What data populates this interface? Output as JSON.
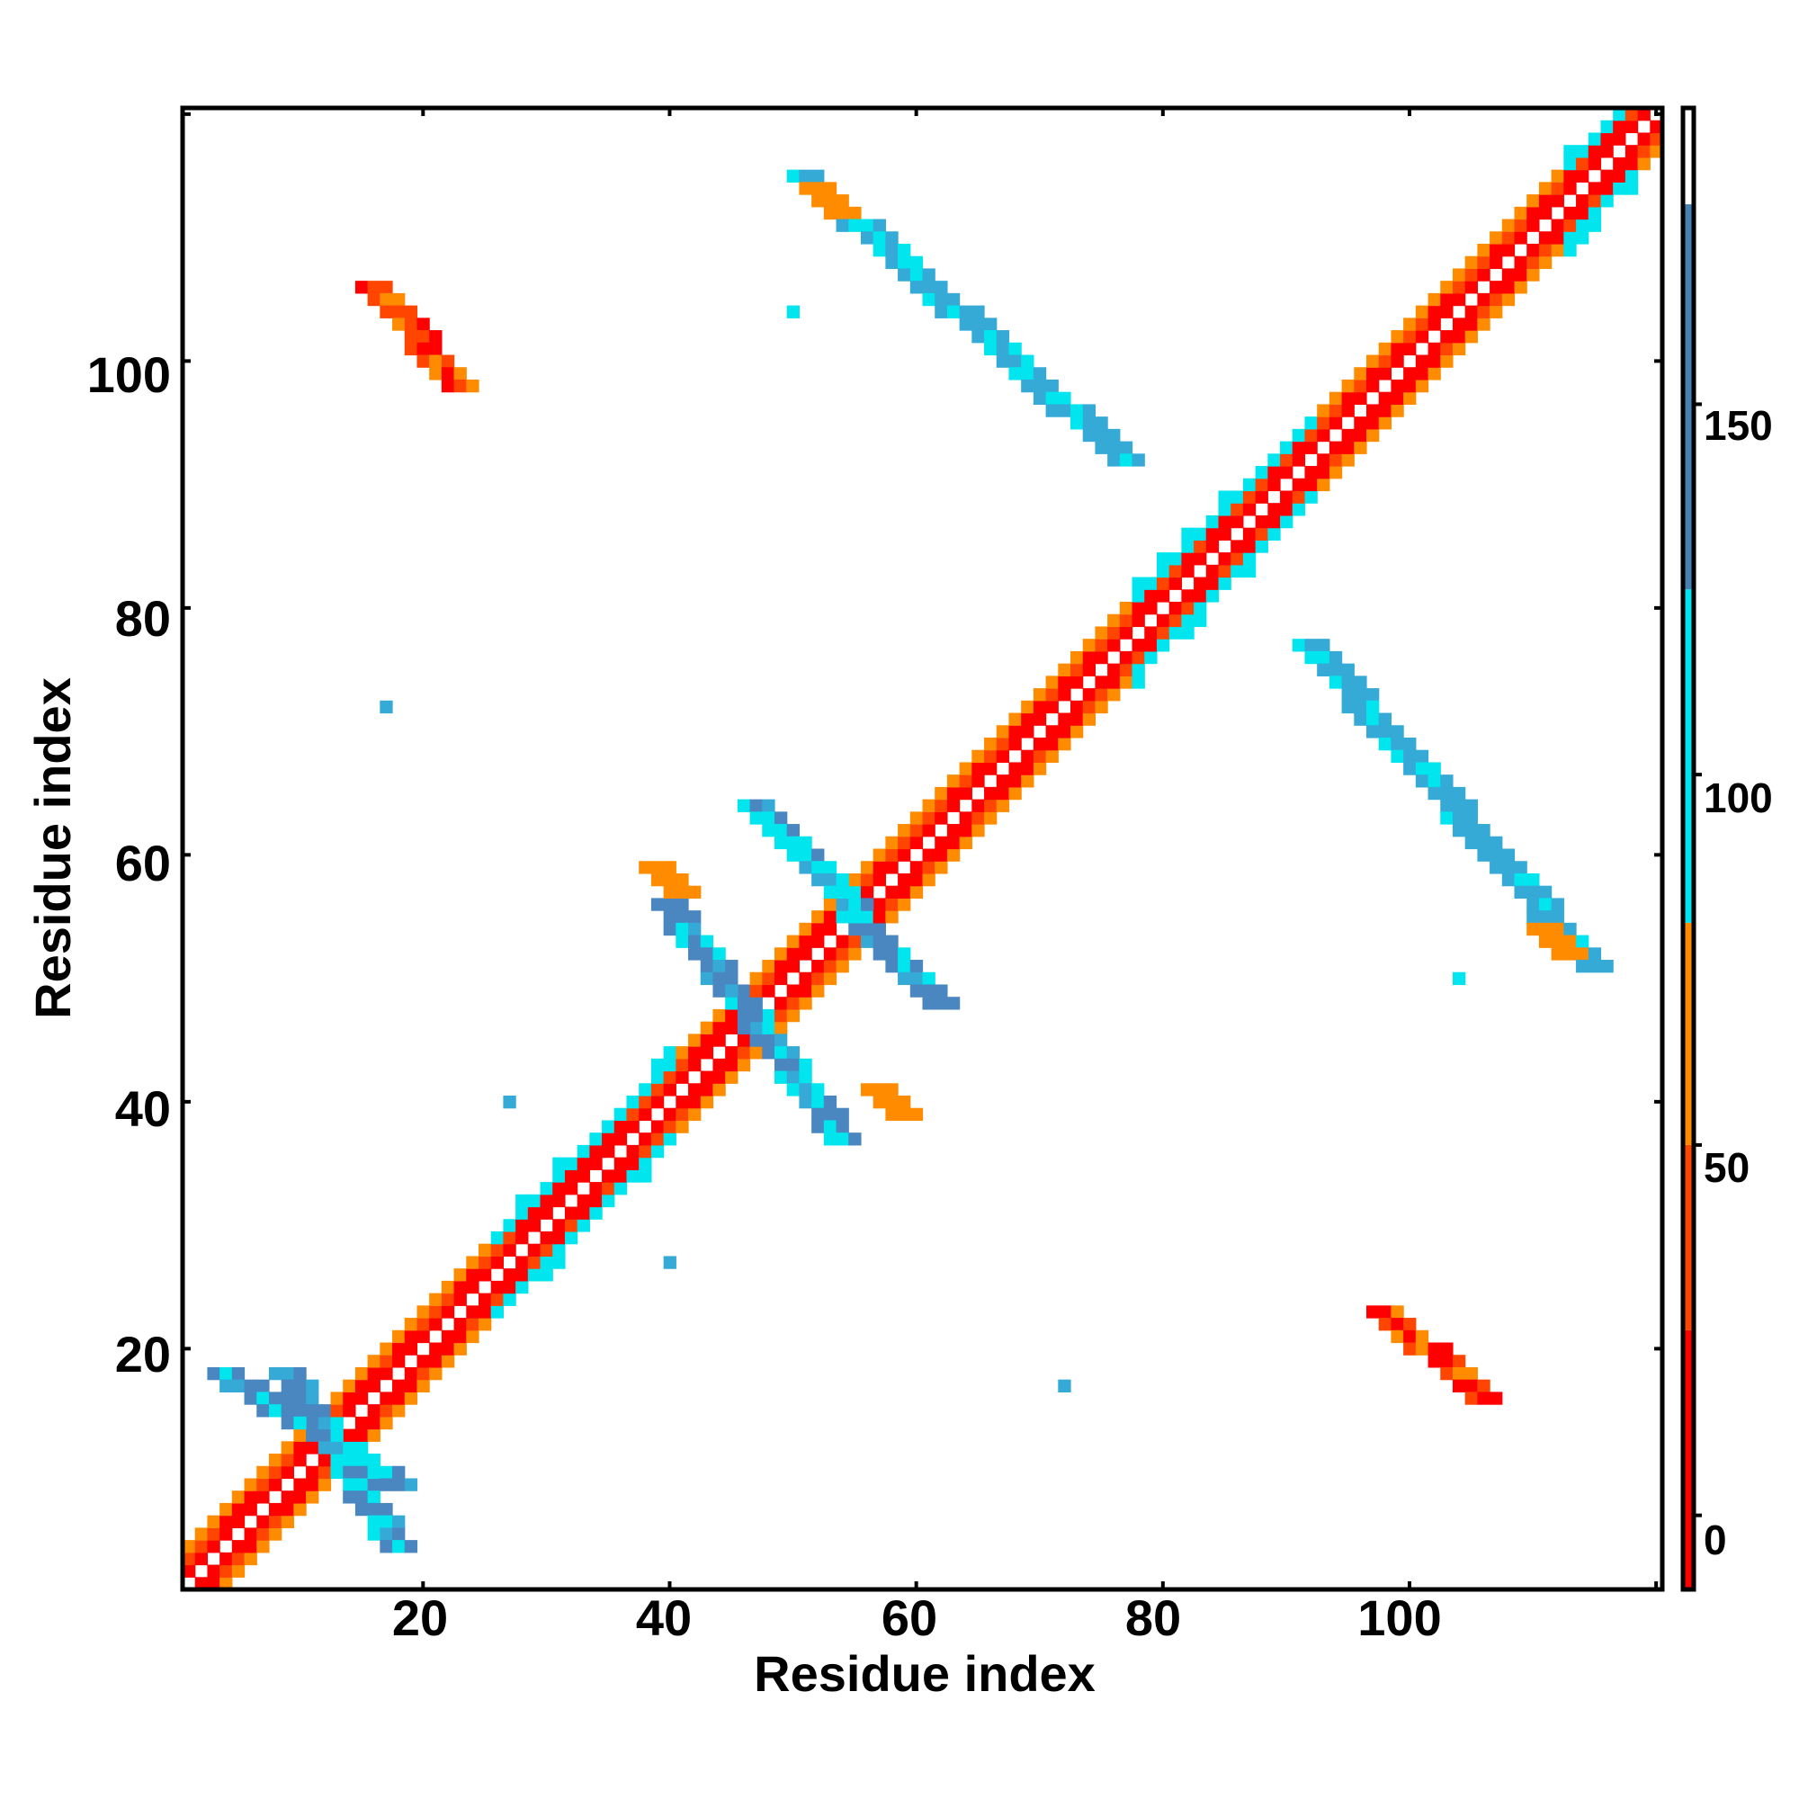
{
  "chart_data": {
    "type": "heatmap",
    "title": "",
    "xlabel": "Residue index",
    "ylabel": "Residue index",
    "xlim": [
      1,
      120
    ],
    "ylim": [
      1,
      120
    ],
    "x_ticks": [
      "20",
      "40",
      "60",
      "80",
      "100"
    ],
    "y_ticks": [
      "20",
      "40",
      "60",
      "80",
      "100"
    ],
    "grid": false,
    "colorbar": {
      "position": "right",
      "range": [
        -10,
        190
      ],
      "ticks": [
        "0",
        "50",
        "100",
        "150"
      ],
      "bands": [
        {
          "from": -10,
          "to": 25,
          "color": "#ff0000"
        },
        {
          "from": 25,
          "to": 50,
          "color": "#ff4500"
        },
        {
          "from": 50,
          "to": 80,
          "color": "#ff8c00"
        },
        {
          "from": 80,
          "to": 125,
          "color": "#00e5ee"
        },
        {
          "from": 125,
          "to": 177,
          "color": "#4682b4"
        },
        {
          "from": 177,
          "to": 190,
          "color": "#ffffff"
        }
      ]
    },
    "colors": {
      "red": "#ff0000",
      "orange_red": "#ff4500",
      "orange": "#ff8c00",
      "cyan": "#00e5ee",
      "sky": "#35aad6",
      "steel": "#4a86c0"
    },
    "diagonal_band": {
      "from": 1,
      "to": 120,
      "half_width": 4
    },
    "helix_segments": [
      [
        26,
        40
      ],
      [
        78,
        92
      ],
      [
        113,
        118
      ]
    ],
    "blocks": [
      {
        "x": [
          16,
          23
        ],
        "y": [
          98,
          106
        ],
        "color": "orange_red"
      },
      {
        "x": [
          98,
          106
        ],
        "y": [
          16,
          23
        ],
        "color": "orange_red"
      },
      {
        "x": [
          51,
          77
        ],
        "y": [
          92,
          115
        ],
        "color": "sky"
      },
      {
        "x": [
          92,
          115
        ],
        "y": [
          51,
          77
        ],
        "color": "sky"
      },
      {
        "x": [
          47,
          62
        ],
        "y": [
          48,
          64
        ],
        "color": "steel"
      },
      {
        "x": [
          40,
          54
        ],
        "y": [
          37,
          56
        ],
        "color": "steel"
      },
      {
        "x": [
          9,
          18
        ],
        "y": [
          4,
          18
        ],
        "color": "steel"
      },
      {
        "x": [
          4,
          18
        ],
        "y": [
          9,
          18
        ],
        "color": "steel"
      },
      {
        "x": [
          52,
          54
        ],
        "y": [
          112,
          114
        ],
        "color": "orange"
      },
      {
        "x": [
          111,
          113
        ],
        "y": [
          52,
          54
        ],
        "color": "orange"
      },
      {
        "x": [
          39,
          41
        ],
        "y": [
          57,
          59
        ],
        "color": "orange"
      },
      {
        "x": [
          57,
          59
        ],
        "y": [
          39,
          41
        ],
        "color": "orange"
      }
    ],
    "isolated_cells": [
      {
        "x": 50,
        "y": 104,
        "color": "cyan"
      },
      {
        "x": 104,
        "y": 50,
        "color": "cyan"
      },
      {
        "x": 17,
        "y": 72,
        "color": "sky"
      },
      {
        "x": 72,
        "y": 17,
        "color": "sky"
      },
      {
        "x": 40,
        "y": 27,
        "color": "sky"
      },
      {
        "x": 27,
        "y": 40,
        "color": "sky"
      }
    ]
  }
}
